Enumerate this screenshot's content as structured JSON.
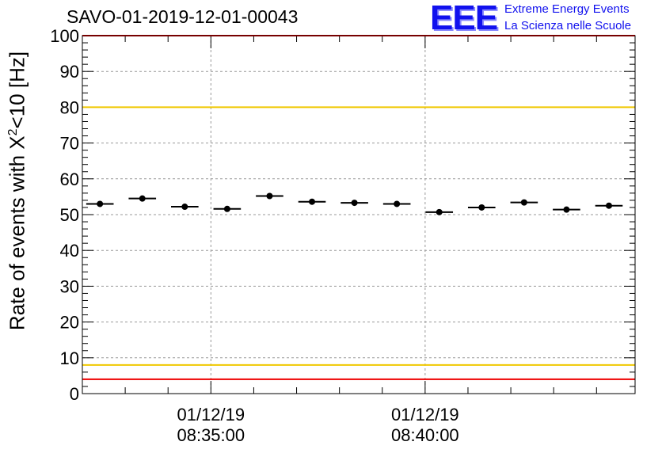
{
  "header": {
    "run_title": "SAVO-01-2019-12-01-00043",
    "logo_text": "EEE",
    "logo_line1": "Extreme Energy Events",
    "logo_line2": "La Scienza nelle Scuole",
    "logo_color": "#1111ee"
  },
  "chart_data": {
    "type": "scatter",
    "title": "SAVO-01-2019-12-01-00043",
    "ylabel_prefix": "Rate of events with X",
    "ylabel_sup": "2",
    "ylabel_suffix": "<10 [Hz]",
    "xlabel": "",
    "ylim": [
      0,
      100
    ],
    "yticks": [
      0,
      10,
      20,
      30,
      40,
      50,
      60,
      70,
      80,
      90,
      100
    ],
    "xlim_minutes": [
      0,
      12.9
    ],
    "xticks": [
      {
        "minute": 3.0,
        "date": "01/12/19",
        "time": "08:35:00"
      },
      {
        "minute": 8.0,
        "date": "01/12/19",
        "time": "08:40:00"
      }
    ],
    "grid": true,
    "reference_lines": [
      {
        "value": 80,
        "color": "#f0c800"
      },
      {
        "value": 8,
        "color": "#f0c800"
      },
      {
        "value": 4,
        "color": "#ee0000"
      },
      {
        "value": 100,
        "color": "#ee0000"
      }
    ],
    "series": [
      {
        "name": "rate",
        "bin_width_minutes": 0.64,
        "x_minutes": [
          0.41,
          1.4,
          2.39,
          3.38,
          4.37,
          5.36,
          6.35,
          7.34,
          8.33,
          9.32,
          10.31,
          11.3,
          12.29
        ],
        "y": [
          53.0,
          54.5,
          52.2,
          51.6,
          55.2,
          53.6,
          53.3,
          53.0,
          50.7,
          52.0,
          53.4,
          51.4,
          52.5
        ]
      }
    ]
  }
}
